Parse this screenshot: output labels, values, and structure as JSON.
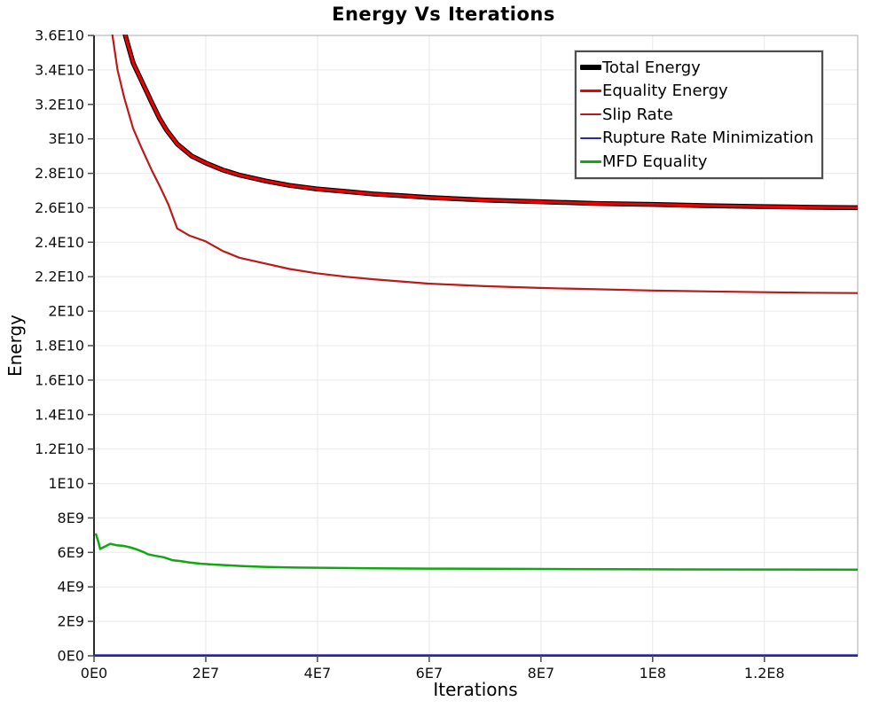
{
  "page": {
    "background": "#FFFFFF"
  },
  "chart_data": {
    "type": "line",
    "title": "Energy Vs Iterations",
    "xlabel": "Iterations",
    "ylabel": "Energy",
    "xlim": [
      0,
      136700000.0
    ],
    "ylim": [
      0,
      36000000000.0
    ],
    "grid": true,
    "legend_position": "top-right",
    "style": {
      "grid_color": "#E9E9E9",
      "plot_border_color": "#ABABAB",
      "axis_color": "#2B2B2B",
      "tick_color": "#4A4A4A",
      "text_color": "#111111",
      "background": "#FFFFFF"
    },
    "x_ticks": [
      {
        "value": 0,
        "label": "0E0"
      },
      {
        "value": 20000000.0,
        "label": "2E7"
      },
      {
        "value": 40000000.0,
        "label": "4E7"
      },
      {
        "value": 60000000.0,
        "label": "6E7"
      },
      {
        "value": 80000000.0,
        "label": "8E7"
      },
      {
        "value": 100000000.0,
        "label": "1E8"
      },
      {
        "value": 120000000.0,
        "label": "1.2E8"
      }
    ],
    "y_ticks": [
      {
        "value": 0,
        "label": "0E0"
      },
      {
        "value": 2000000000.0,
        "label": "2E9"
      },
      {
        "value": 4000000000.0,
        "label": "4E9"
      },
      {
        "value": 6000000000.0,
        "label": "6E9"
      },
      {
        "value": 8000000000.0,
        "label": "8E9"
      },
      {
        "value": 10000000000.0,
        "label": "1E10"
      },
      {
        "value": 12000000000.0,
        "label": "1.2E10"
      },
      {
        "value": 14000000000.0,
        "label": "1.4E10"
      },
      {
        "value": 16000000000.0,
        "label": "1.6E10"
      },
      {
        "value": 18000000000.0,
        "label": "1.8E10"
      },
      {
        "value": 20000000000.0,
        "label": "2E10"
      },
      {
        "value": 22000000000.0,
        "label": "2.2E10"
      },
      {
        "value": 24000000000.0,
        "label": "2.4E10"
      },
      {
        "value": 26000000000.0,
        "label": "2.6E10"
      },
      {
        "value": 28000000000.0,
        "label": "2.8E10"
      },
      {
        "value": 30000000000.0,
        "label": "3E10"
      },
      {
        "value": 32000000000.0,
        "label": "3.2E10"
      },
      {
        "value": 34000000000.0,
        "label": "3.4E10"
      },
      {
        "value": 36000000000.0,
        "label": "3.6E10"
      }
    ],
    "series": [
      {
        "name": "Total Energy",
        "color": "#000000",
        "width": 5.5,
        "points": [
          [
            4000000.0,
            40500000000.0
          ],
          [
            5600000.0,
            36000000000.0
          ],
          [
            7000000.0,
            34400000000.0
          ],
          [
            8600000.0,
            33300000000.0
          ],
          [
            10500000.0,
            32000000000.0
          ],
          [
            11700000.0,
            31200000000.0
          ],
          [
            13000000.0,
            30500000000.0
          ],
          [
            14900000.0,
            29700000000.0
          ],
          [
            17500000.0,
            29000000000.0
          ],
          [
            20000000.0,
            28600000000.0
          ],
          [
            23000000.0,
            28200000000.0
          ],
          [
            26000000.0,
            27900000000.0
          ],
          [
            30800000.0,
            27550000000.0
          ],
          [
            35000000.0,
            27300000000.0
          ],
          [
            39800000.0,
            27100000000.0
          ],
          [
            45000000.0,
            26950000000.0
          ],
          [
            50000000.0,
            26800000000.0
          ],
          [
            55000000.0,
            26700000000.0
          ],
          [
            59800000.0,
            26600000000.0
          ],
          [
            70000000.0,
            26450000000.0
          ],
          [
            79800000.0,
            26350000000.0
          ],
          [
            90000000.0,
            26250000000.0
          ],
          [
            99800000.0,
            26200000000.0
          ],
          [
            110000000.0,
            26120000000.0
          ],
          [
            119800000.0,
            26070000000.0
          ],
          [
            128000000.0,
            26030000000.0
          ],
          [
            136700000.0,
            26000000000.0
          ]
        ]
      },
      {
        "name": "Equality Energy",
        "color": "#ED0000",
        "width": 3.2,
        "points": [
          [
            4000000.0,
            40500000000.0
          ],
          [
            5600000.0,
            36000000000.0
          ],
          [
            7000000.0,
            34400000000.0
          ],
          [
            8600000.0,
            33300000000.0
          ],
          [
            10500000.0,
            32000000000.0
          ],
          [
            11700000.0,
            31200000000.0
          ],
          [
            13000000.0,
            30500000000.0
          ],
          [
            14900000.0,
            29700000000.0
          ],
          [
            17500000.0,
            29000000000.0
          ],
          [
            20000000.0,
            28600000000.0
          ],
          [
            23000000.0,
            28200000000.0
          ],
          [
            26000000.0,
            27900000000.0
          ],
          [
            30800000.0,
            27550000000.0
          ],
          [
            35000000.0,
            27300000000.0
          ],
          [
            39800000.0,
            27100000000.0
          ],
          [
            45000000.0,
            26950000000.0
          ],
          [
            50000000.0,
            26800000000.0
          ],
          [
            55000000.0,
            26700000000.0
          ],
          [
            59800000.0,
            26600000000.0
          ],
          [
            70000000.0,
            26450000000.0
          ],
          [
            79800000.0,
            26350000000.0
          ],
          [
            90000000.0,
            26250000000.0
          ],
          [
            99800000.0,
            26200000000.0
          ],
          [
            110000000.0,
            26120000000.0
          ],
          [
            119800000.0,
            26070000000.0
          ],
          [
            128000000.0,
            26030000000.0
          ],
          [
            136700000.0,
            26000000000.0
          ]
        ]
      },
      {
        "name": "Slip Rate",
        "color": "#BB1A1A",
        "width": 2.2,
        "points": [
          [
            2800000.0,
            40500000000.0
          ],
          [
            3300000.0,
            36000000000.0
          ],
          [
            4200000.0,
            34000000000.0
          ],
          [
            5400000.0,
            32400000000.0
          ],
          [
            7000000.0,
            30600000000.0
          ],
          [
            8600000.0,
            29400000000.0
          ],
          [
            10300000.0,
            28200000000.0
          ],
          [
            11700000.0,
            27300000000.0
          ],
          [
            13300000.0,
            26200000000.0
          ],
          [
            14900000.0,
            24800000000.0
          ],
          [
            17000000.0,
            24400000000.0
          ],
          [
            20000000.0,
            24050000000.0
          ],
          [
            23000000.0,
            23500000000.0
          ],
          [
            26000000.0,
            23100000000.0
          ],
          [
            30800000.0,
            22750000000.0
          ],
          [
            35000000.0,
            22450000000.0
          ],
          [
            39800000.0,
            22200000000.0
          ],
          [
            45000000.0,
            22000000000.0
          ],
          [
            50000000.0,
            21850000000.0
          ],
          [
            59800000.0,
            21600000000.0
          ],
          [
            70000000.0,
            21450000000.0
          ],
          [
            79800000.0,
            21350000000.0
          ],
          [
            90000000.0,
            21270000000.0
          ],
          [
            99800000.0,
            21200000000.0
          ],
          [
            110000000.0,
            21150000000.0
          ],
          [
            119800000.0,
            21100000000.0
          ],
          [
            128000000.0,
            21070000000.0
          ],
          [
            136700000.0,
            21050000000.0
          ]
        ]
      },
      {
        "name": "Rupture Rate Minimization",
        "color": "#2A2AA8",
        "width": 2.2,
        "points": [
          [
            0,
            30000000.0
          ],
          [
            20000000.0,
            30000000.0
          ],
          [
            40000000.0,
            30000000.0
          ],
          [
            60000000.0,
            30000000.0
          ],
          [
            80000000.0,
            30000000.0
          ],
          [
            100000000.0,
            30000000.0
          ],
          [
            120000000.0,
            30000000.0
          ],
          [
            136700000.0,
            30000000.0
          ]
        ]
      },
      {
        "name": "MFD Equality",
        "color": "#10A810",
        "width": 2.5,
        "points": [
          [
            300000.0,
            7100000000.0
          ],
          [
            800000.0,
            6600000000.0
          ],
          [
            1100000.0,
            6200000000.0
          ],
          [
            2000000.0,
            6350000000.0
          ],
          [
            2900000.0,
            6500000000.0
          ],
          [
            4000000.0,
            6420000000.0
          ],
          [
            5200000.0,
            6380000000.0
          ],
          [
            6400000.0,
            6300000000.0
          ],
          [
            7600000.0,
            6180000000.0
          ],
          [
            9000000.0,
            6000000000.0
          ],
          [
            9600000.0,
            5900000000.0
          ],
          [
            11000000.0,
            5800000000.0
          ],
          [
            12500000.0,
            5720000000.0
          ],
          [
            14000000.0,
            5550000000.0
          ],
          [
            15500000.0,
            5500000000.0
          ],
          [
            17000000.0,
            5420000000.0
          ],
          [
            19000000.0,
            5350000000.0
          ],
          [
            21000000.0,
            5300000000.0
          ],
          [
            24000000.0,
            5250000000.0
          ],
          [
            27000000.0,
            5200000000.0
          ],
          [
            31000000.0,
            5160000000.0
          ],
          [
            36000000.0,
            5120000000.0
          ],
          [
            42000000.0,
            5100000000.0
          ],
          [
            50000000.0,
            5080000000.0
          ],
          [
            60000000.0,
            5060000000.0
          ],
          [
            80000000.0,
            5040000000.0
          ],
          [
            100000000.0,
            5020000000.0
          ],
          [
            120000000.0,
            5010000000.0
          ],
          [
            136700000.0,
            5000000000.0
          ]
        ]
      }
    ]
  }
}
